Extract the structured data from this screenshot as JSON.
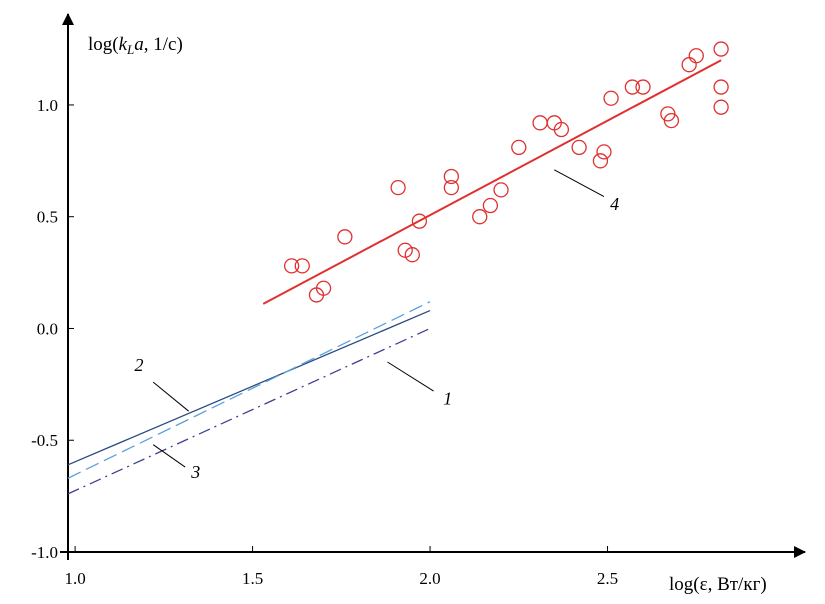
{
  "chart_data": {
    "type": "scatter",
    "title": "",
    "ylabel": {
      "prefix": "log(",
      "k": "k",
      "sub": "L",
      "a": "a",
      "suffix": ", 1/с)"
    },
    "xlabel": "log(ε, Вт/кг)",
    "xlim": [
      0.98,
      3.0
    ],
    "ylim": [
      -1.0,
      1.38
    ],
    "xticks": [
      {
        "value": 1.0,
        "label": "1.0"
      },
      {
        "value": 1.5,
        "label": "1.5"
      },
      {
        "value": 2.0,
        "label": "2.0"
      },
      {
        "value": 2.5,
        "label": "2.5"
      }
    ],
    "yticks": [
      {
        "value": -1.0,
        "label": "-1.0"
      },
      {
        "value": -0.5,
        "label": "-0.5"
      },
      {
        "value": 0.0,
        "label": "0.0"
      },
      {
        "value": 0.5,
        "label": "0.5"
      },
      {
        "value": 1.0,
        "label": "1.0"
      }
    ],
    "grid": false,
    "colors": {
      "axis": "#000000",
      "points": "#e03030",
      "line4": "#e03030",
      "line2": "#2a4a80",
      "line3": "#5aa0dc",
      "line1": "#404090"
    },
    "points": [
      {
        "x": 1.61,
        "y": 0.28
      },
      {
        "x": 1.64,
        "y": 0.28
      },
      {
        "x": 1.68,
        "y": 0.15
      },
      {
        "x": 1.7,
        "y": 0.18
      },
      {
        "x": 1.76,
        "y": 0.41
      },
      {
        "x": 1.91,
        "y": 0.63
      },
      {
        "x": 1.93,
        "y": 0.35
      },
      {
        "x": 1.95,
        "y": 0.33
      },
      {
        "x": 1.97,
        "y": 0.48
      },
      {
        "x": 2.06,
        "y": 0.68
      },
      {
        "x": 2.06,
        "y": 0.63
      },
      {
        "x": 2.14,
        "y": 0.5
      },
      {
        "x": 2.17,
        "y": 0.55
      },
      {
        "x": 2.2,
        "y": 0.62
      },
      {
        "x": 2.25,
        "y": 0.81
      },
      {
        "x": 2.31,
        "y": 0.92
      },
      {
        "x": 2.35,
        "y": 0.92
      },
      {
        "x": 2.37,
        "y": 0.89
      },
      {
        "x": 2.42,
        "y": 0.81
      },
      {
        "x": 2.48,
        "y": 0.75
      },
      {
        "x": 2.49,
        "y": 0.79
      },
      {
        "x": 2.51,
        "y": 1.03
      },
      {
        "x": 2.57,
        "y": 1.08
      },
      {
        "x": 2.6,
        "y": 1.08
      },
      {
        "x": 2.67,
        "y": 0.96
      },
      {
        "x": 2.68,
        "y": 0.93
      },
      {
        "x": 2.73,
        "y": 1.18
      },
      {
        "x": 2.75,
        "y": 1.22
      },
      {
        "x": 2.82,
        "y": 1.25
      },
      {
        "x": 2.82,
        "y": 1.08
      },
      {
        "x": 2.82,
        "y": 0.99
      }
    ],
    "series": [
      {
        "name": "1",
        "style": "dashdot",
        "x": [
          0.98,
          2.0
        ],
        "y": [
          -0.74,
          0.0
        ]
      },
      {
        "name": "2",
        "style": "solid",
        "x": [
          0.98,
          2.0
        ],
        "y": [
          -0.61,
          0.08
        ]
      },
      {
        "name": "3",
        "style": "dashed",
        "x": [
          0.98,
          2.0
        ],
        "y": [
          -0.67,
          0.12
        ]
      },
      {
        "name": "4",
        "style": "solid",
        "x": [
          1.53,
          2.82
        ],
        "y": [
          0.11,
          1.2
        ]
      }
    ],
    "labels": [
      {
        "text": "1",
        "x": 2.05,
        "y": -0.34,
        "leader": [
          [
            1.88,
            -0.15
          ],
          [
            2.01,
            -0.28
          ]
        ]
      },
      {
        "text": "2",
        "x": 1.18,
        "y": -0.19,
        "leader": [
          [
            1.22,
            -0.24
          ],
          [
            1.32,
            -0.37
          ]
        ]
      },
      {
        "text": "3",
        "x": 1.34,
        "y": -0.67,
        "leader": [
          [
            1.22,
            -0.52
          ],
          [
            1.31,
            -0.62
          ]
        ]
      },
      {
        "text": "4",
        "x": 2.52,
        "y": 0.53,
        "leader": [
          [
            2.35,
            0.71
          ],
          [
            2.49,
            0.59
          ]
        ]
      }
    ]
  }
}
